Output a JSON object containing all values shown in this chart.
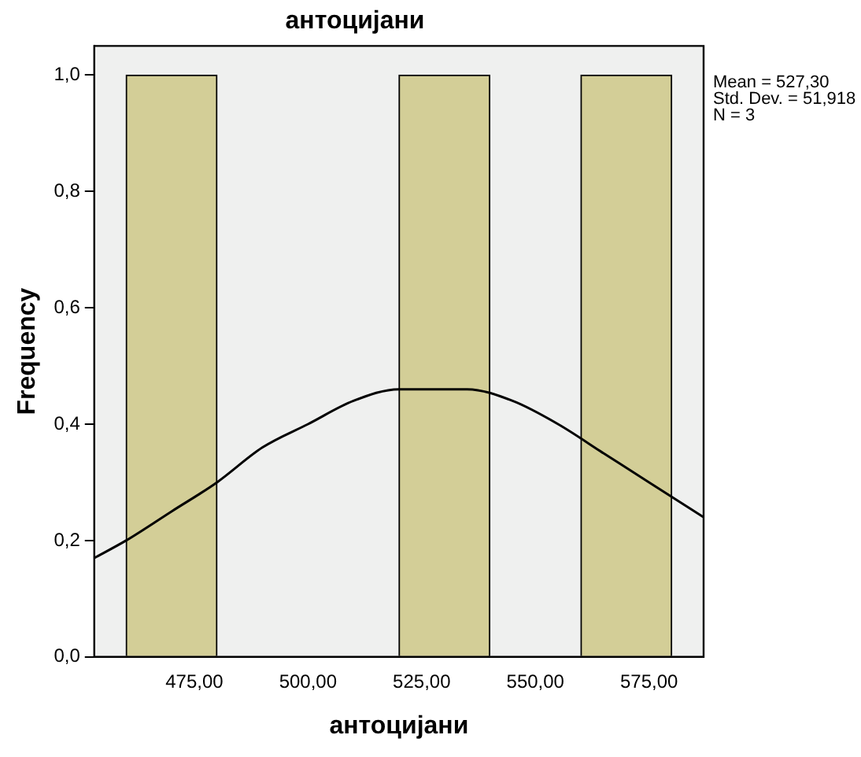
{
  "chart_data": {
    "type": "histogram",
    "title": "антоцијани",
    "xlabel": "антоцијани",
    "ylabel": "Frequency",
    "bins": [
      460,
      480,
      500,
      520,
      540,
      560,
      580
    ],
    "values": [
      1,
      0,
      0,
      1,
      0,
      1
    ],
    "color": "#d3ce97",
    "series": [
      {
        "type": "line",
        "color": "#000000",
        "x": [
          453,
          460,
          470,
          480,
          490,
          500,
          510,
          520,
          527,
          535,
          545,
          555,
          565,
          575,
          587
        ],
        "values": [
          0.17,
          0.2,
          0.25,
          0.3,
          0.36,
          0.4,
          0.44,
          0.46,
          0.46,
          0.46,
          0.44,
          0.4,
          0.35,
          0.3,
          0.24
        ]
      }
    ],
    "xlim": [
      453,
      587
    ],
    "ylim": [
      0,
      1.05
    ],
    "xticks": [
      {
        "value": 475,
        "label": "475,00"
      },
      {
        "value": 500,
        "label": "500,00"
      },
      {
        "value": 525,
        "label": "525,00"
      },
      {
        "value": 550,
        "label": "550,00"
      },
      {
        "value": 575,
        "label": "575,00"
      }
    ],
    "yticks": [
      {
        "value": 0,
        "label": "0,0"
      },
      {
        "value": 0.2,
        "label": "0,2"
      },
      {
        "value": 0.4,
        "label": "0,4"
      },
      {
        "value": 0.6,
        "label": "0,6"
      },
      {
        "value": 0.8,
        "label": "0,8"
      },
      {
        "value": 1,
        "label": "1,0"
      }
    ],
    "annotations": [
      "Mean = 527,30",
      "Std. Dev. = 51,918",
      "N = 3"
    ],
    "grid": false,
    "legend": false,
    "marker": "none"
  }
}
